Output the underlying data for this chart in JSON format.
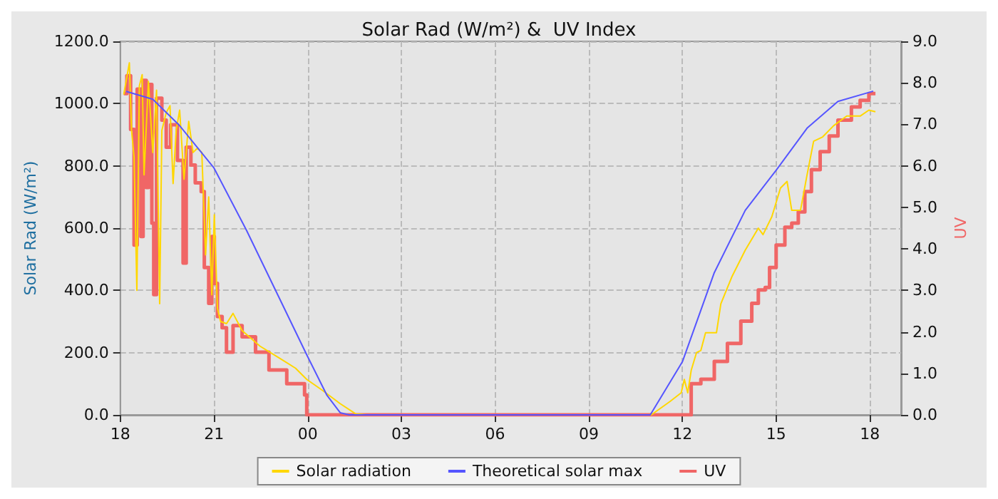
{
  "chart_data": {
    "type": "line",
    "title": "Solar Rad (W/m²) &  UV Index",
    "ylabel": "Solar Rad (W/m²)",
    "y2label": "UV",
    "xlim": [
      18,
      43
    ],
    "xticks": [
      {
        "value": 18,
        "label": "18"
      },
      {
        "value": 21,
        "label": "21"
      },
      {
        "value": 24,
        "label": "00"
      },
      {
        "value": 27,
        "label": "03"
      },
      {
        "value": 30,
        "label": "06"
      },
      {
        "value": 33,
        "label": "09"
      },
      {
        "value": 36,
        "label": "12"
      },
      {
        "value": 39,
        "label": "15"
      },
      {
        "value": 42,
        "label": "18"
      }
    ],
    "ylim": [
      0,
      1200
    ],
    "yticks": [
      {
        "value": 0,
        "label": "0.0"
      },
      {
        "value": 200,
        "label": "200.0"
      },
      {
        "value": 400,
        "label": "400.0"
      },
      {
        "value": 600,
        "label": "600.0"
      },
      {
        "value": 800,
        "label": "800.0"
      },
      {
        "value": 1000,
        "label": "1000.0"
      },
      {
        "value": 1200,
        "label": "1200.0"
      }
    ],
    "y2lim": [
      0,
      9
    ],
    "y2ticks": [
      {
        "value": 0,
        "label": "0.0"
      },
      {
        "value": 1,
        "label": "1.0"
      },
      {
        "value": 2,
        "label": "2.0"
      },
      {
        "value": 3,
        "label": "3.0"
      },
      {
        "value": 4,
        "label": "4.0"
      },
      {
        "value": 5,
        "label": "5.0"
      },
      {
        "value": 6,
        "label": "6.0"
      },
      {
        "value": 7,
        "label": "7.0"
      },
      {
        "value": 8,
        "label": "8.0"
      },
      {
        "value": 9,
        "label": "9.0"
      }
    ],
    "grid": true,
    "legend": "bottom",
    "marker": "none",
    "line_style": "solid",
    "series": [
      {
        "name": "Solar radiation",
        "color": "#ffd700",
        "x": [
          18.11,
          18.29,
          18.36,
          18.44,
          18.53,
          18.61,
          18.7,
          18.76,
          18.9,
          19.04,
          19.16,
          19.26,
          19.33,
          19.47,
          19.59,
          19.69,
          19.79,
          19.9,
          20.04,
          20.19,
          20.33,
          20.47,
          20.61,
          20.73,
          20.83,
          20.93,
          21.01,
          21.11,
          21.21,
          21.4,
          21.61,
          21.9,
          22.47,
          23.04,
          23.61,
          23.97,
          24.47,
          25.04,
          25.54,
          25.9,
          35,
          35.04,
          35.6,
          35.96,
          36.06,
          36.17,
          36.28,
          36.45,
          36.59,
          36.74,
          37.09,
          37.23,
          37.58,
          38.01,
          38.43,
          38.58,
          38.86,
          39.14,
          39.35,
          39.5,
          39.78,
          39.99,
          40.2,
          40.49,
          40.84,
          41.26,
          41.69,
          41.97,
          42.18
        ],
        "values": [
          1029,
          1131,
          914,
          829,
          400,
          1057,
          1093,
          771,
          1071,
          843,
          1043,
          357,
          914,
          971,
          993,
          743,
          914,
          979,
          757,
          943,
          843,
          857,
          843,
          514,
          700,
          386,
          643,
          343,
          300,
          293,
          326,
          271,
          221,
          186,
          150,
          114,
          79,
          36,
          3,
          0,
          0,
          3,
          43,
          71,
          114,
          71,
          143,
          200,
          207,
          264,
          264,
          357,
          443,
          529,
          600,
          579,
          636,
          729,
          750,
          657,
          657,
          771,
          879,
          893,
          929,
          960,
          960,
          979,
          974
        ]
      },
      {
        "name": "Theoretical solar max",
        "color": "#5555ff",
        "x": [
          18.19,
          19.04,
          19.9,
          21,
          22.04,
          23.04,
          23.97,
          24.61,
          25.04,
          25.33,
          34.97,
          36,
          37.02,
          38.01,
          39,
          39.99,
          40.98,
          42.11
        ],
        "values": [
          1039,
          1014,
          929,
          793,
          593,
          386,
          193,
          64,
          7,
          0,
          0,
          171,
          457,
          657,
          786,
          921,
          1007,
          1040
        ]
      },
      {
        "name": "UV",
        "type": "step",
        "axis": "y2",
        "color": "#f06666",
        "x": [
          18.11,
          18.21,
          18.33,
          18.44,
          18.54,
          18.66,
          18.73,
          18.83,
          18.9,
          19.01,
          19.07,
          19.16,
          19.33,
          19.47,
          19.61,
          19.83,
          20.01,
          20.11,
          20.26,
          20.4,
          20.59,
          20.69,
          20.83,
          20.93,
          21.01,
          21.11,
          21.26,
          21.4,
          21.61,
          21.9,
          22.33,
          22.76,
          23.33,
          23.9,
          23.97,
          36.24,
          36.28,
          36.59,
          37.02,
          37.44,
          37.87,
          38.22,
          38.43,
          38.65,
          38.79,
          39,
          39.28,
          39.5,
          39.71,
          39.92,
          40.13,
          40.41,
          40.7,
          40.98,
          41.41,
          41.69,
          41.97,
          42.18
        ],
        "values": [
          7.74,
          8.17,
          6.88,
          4.09,
          7.85,
          4.3,
          8.06,
          5.48,
          7.96,
          4.62,
          2.9,
          7.63,
          7.1,
          6.45,
          6.99,
          6.13,
          3.66,
          6.45,
          6.02,
          5.59,
          5.38,
          3.55,
          2.69,
          4.3,
          3.17,
          2.37,
          2.1,
          1.51,
          2.15,
          1.88,
          1.51,
          1.08,
          0.75,
          0.48,
          0,
          0,
          0.75,
          0.86,
          1.29,
          1.72,
          2.26,
          2.69,
          3.01,
          3.07,
          3.55,
          4.09,
          4.52,
          4.62,
          4.89,
          5.38,
          5.91,
          6.34,
          6.72,
          7.1,
          7.42,
          7.58,
          7.74,
          7.72
        ]
      }
    ]
  }
}
